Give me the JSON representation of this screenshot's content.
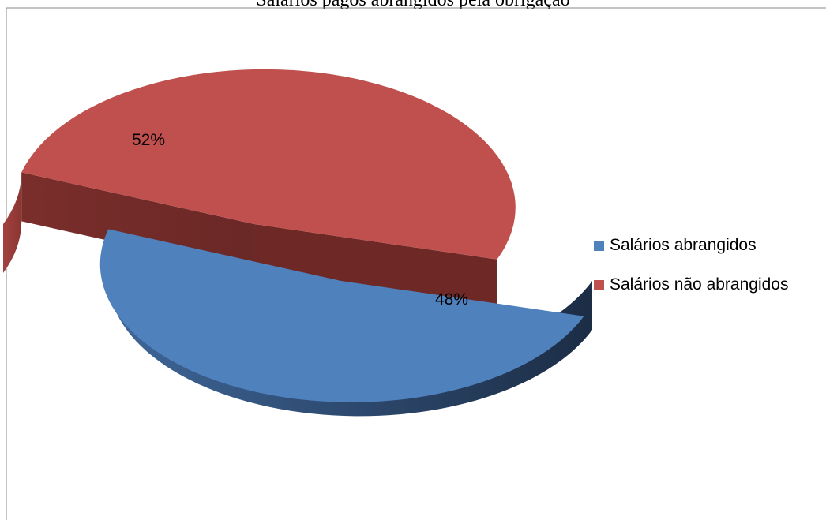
{
  "chart_data": {
    "type": "pie",
    "title": "Salários pagos abrangidos pela obrigação",
    "categories": [
      "Salários abrangidos",
      "Salários não abrangidos"
    ],
    "values": [
      48,
      52
    ],
    "labels": [
      "48%",
      "52%"
    ],
    "colors": {
      "Salários abrangidos": "#4F81BD",
      "Salários não abrangidos": "#C0504D"
    },
    "legend_position": "right",
    "exploded": true,
    "three_d": true
  }
}
